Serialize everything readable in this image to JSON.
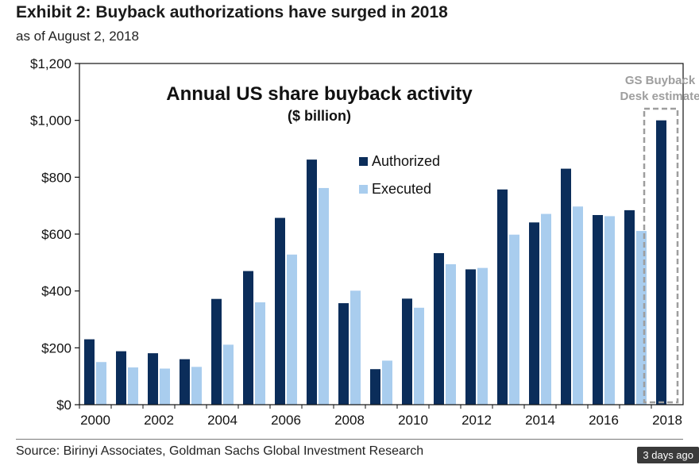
{
  "header": {
    "title": "Exhibit 2: Buyback authorizations have surged in 2018",
    "subtitle": "as of August 2, 2018"
  },
  "footer": {
    "source": "Source: Birinyi Associates, Goldman Sachs Global Investment Research",
    "badge": "3 days ago"
  },
  "colors": {
    "authorized": "#0b2d5a",
    "executed": "#a9cdee",
    "annotation": "#9e9e9e"
  },
  "chart_data": {
    "type": "bar",
    "title": "Annual US share buyback activity",
    "unit_label": "($ billion)",
    "xlabel": "",
    "ylabel": "",
    "ylim": [
      0,
      1200
    ],
    "yticks": [
      0,
      200,
      400,
      600,
      800,
      1000,
      1200
    ],
    "ytick_labels": [
      "$0",
      "$200",
      "$400",
      "$600",
      "$800",
      "$1,000",
      "$1,200"
    ],
    "categories": [
      "2000",
      "2001",
      "2002",
      "2003",
      "2004",
      "2005",
      "2006",
      "2007",
      "2008",
      "2009",
      "2010",
      "2011",
      "2012",
      "2013",
      "2014",
      "2015",
      "2016",
      "2017",
      "2018"
    ],
    "xtick_labels": [
      "2000",
      "",
      "2002",
      "",
      "2004",
      "",
      "2006",
      "",
      "2008",
      "",
      "2010",
      "",
      "2012",
      "",
      "2014",
      "",
      "2016",
      "",
      "2018"
    ],
    "series": [
      {
        "name": "Authorized",
        "values": [
          230,
          188,
          181,
          160,
          372,
          470,
          657,
          862,
          357,
          125,
          373,
          533,
          476,
          757,
          641,
          830,
          667,
          684,
          1000
        ]
      },
      {
        "name": "Executed",
        "values": [
          150,
          131,
          127,
          133,
          211,
          360,
          528,
          762,
          401,
          155,
          341,
          494,
          481,
          598,
          671,
          697,
          663,
          611,
          null
        ]
      }
    ],
    "legend_position": "top-center",
    "annotation": {
      "lines": [
        "GS Buyback",
        "Desk estimate"
      ],
      "category": "2018"
    }
  }
}
